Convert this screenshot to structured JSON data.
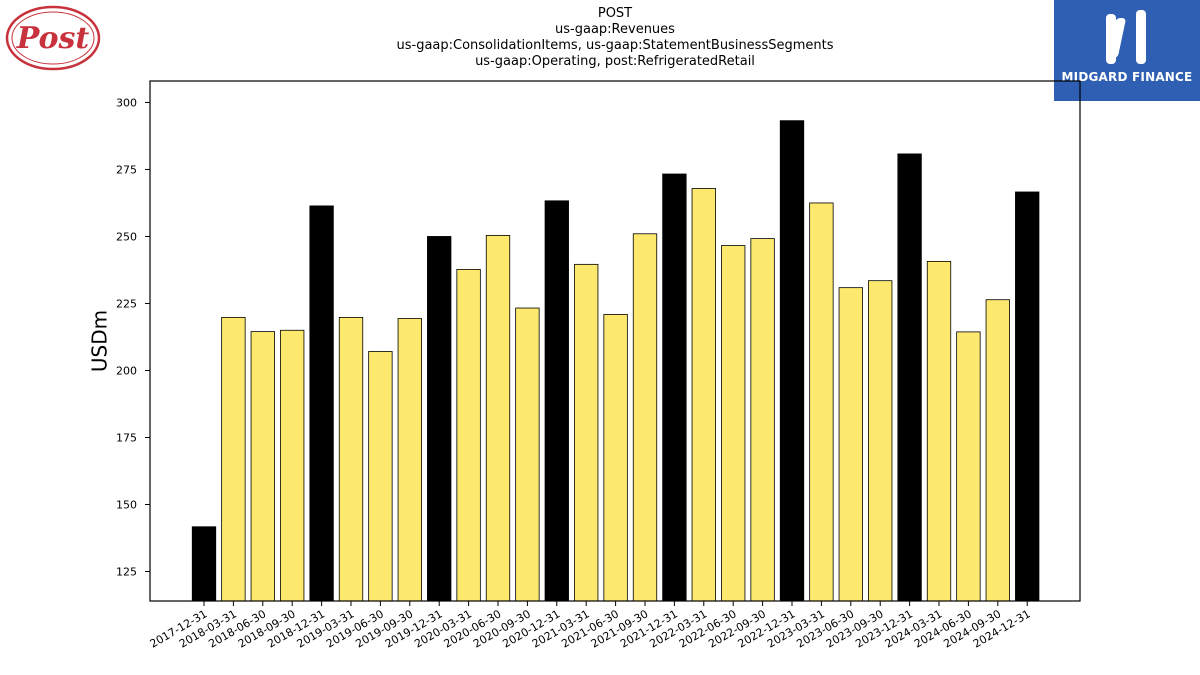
{
  "chart_data": {
    "type": "bar",
    "title_lines": [
      "POST",
      "us-gaap:Revenues",
      "us-gaap:ConsolidationItems, us-gaap:StatementBusinessSegments",
      "us-gaap:Operating, post:RefrigeratedRetail"
    ],
    "xlabel": "",
    "ylabel": "USDm",
    "ylim": [
      114,
      308
    ],
    "yticks": [
      125,
      150,
      175,
      200,
      225,
      250,
      275,
      300
    ],
    "grid": false,
    "categories": [
      "2017-12-31",
      "2018-03-31",
      "2018-06-30",
      "2018-09-30",
      "2018-12-31",
      "2019-03-31",
      "2019-06-30",
      "2019-09-30",
      "2019-12-31",
      "2020-03-31",
      "2020-06-30",
      "2020-09-30",
      "2020-12-31",
      "2021-03-31",
      "2021-06-30",
      "2021-09-30",
      "2021-12-31",
      "2022-03-31",
      "2022-06-30",
      "2022-09-30",
      "2022-12-31",
      "2023-03-31",
      "2023-06-30",
      "2023-09-30",
      "2023-12-31",
      "2024-03-31",
      "2024-06-30",
      "2024-09-30",
      "2024-12-31"
    ],
    "values": [
      141.7,
      219.8,
      214.5,
      215.0,
      261.4,
      219.8,
      207.1,
      219.4,
      250.0,
      237.7,
      250.4,
      223.3,
      263.3,
      239.6,
      220.9,
      251.0,
      273.3,
      267.9,
      246.6,
      249.2,
      293.2,
      262.5,
      230.9,
      233.5,
      280.8,
      240.7,
      214.4,
      226.4,
      266.6
    ],
    "bar_colors": {
      "fiscal_year_end": "#000000",
      "quarter": "#fde96e",
      "edge": "#000000"
    },
    "highlight_categories": [
      "2017-12-31",
      "2018-12-31",
      "2019-12-31",
      "2020-12-31",
      "2021-12-31",
      "2022-12-31",
      "2023-12-31",
      "2024-12-31"
    ]
  },
  "logos": {
    "left_text": "Post",
    "left_color": "#c8323c",
    "right_text": "MIDGARD FINANCE",
    "right_bg": "#2f5fb3"
  }
}
